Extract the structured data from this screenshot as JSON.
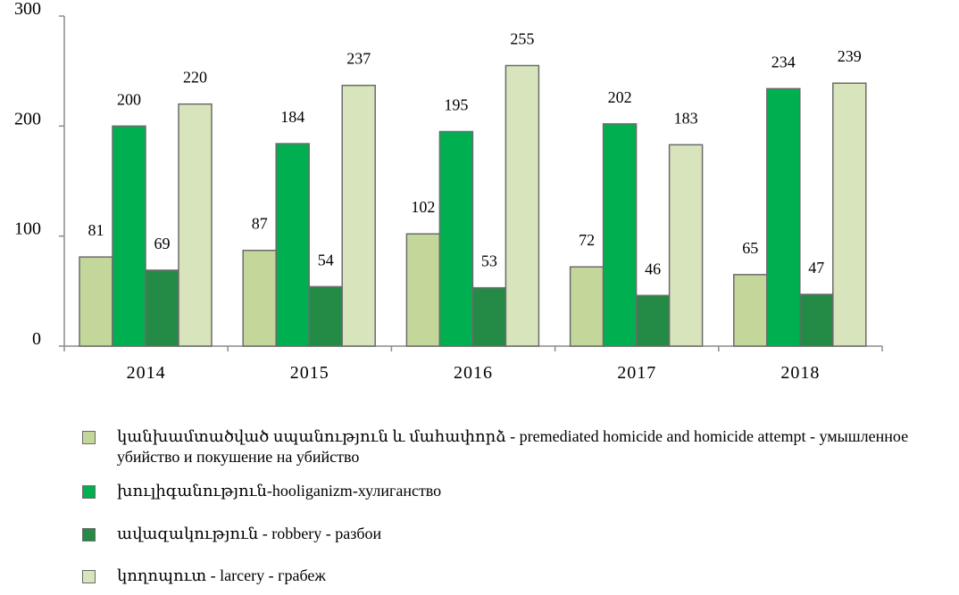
{
  "chart_data": {
    "type": "bar",
    "categories": [
      "2014",
      "2015",
      "2016",
      "2017",
      "2018"
    ],
    "series": [
      {
        "name": "կանխամտածված սպանություն և մահափորձ - premediated homicide and homicide attempt - умышленное убийство и покушение на убийство",
        "color": "#c4d79b",
        "values": [
          81,
          87,
          102,
          72,
          65
        ]
      },
      {
        "name": "խուլիգանություն-hooliganizm-хулиганство",
        "color": "#00b050",
        "values": [
          200,
          184,
          195,
          202,
          234
        ]
      },
      {
        "name": "ավազակություն - robbery - разбои",
        "color": "#238b45",
        "values": [
          69,
          54,
          53,
          46,
          47
        ]
      },
      {
        "name": "կողոպուտ - larcery - грабеж",
        "color": "#d8e4bc",
        "values": [
          220,
          237,
          255,
          183,
          239
        ]
      }
    ],
    "y_ticks": [
      "0",
      "100",
      "200",
      "300"
    ],
    "ylim": [
      0,
      300
    ],
    "title": "",
    "xlabel": "",
    "ylabel": "",
    "grid": false,
    "legend_position": "bottom"
  }
}
